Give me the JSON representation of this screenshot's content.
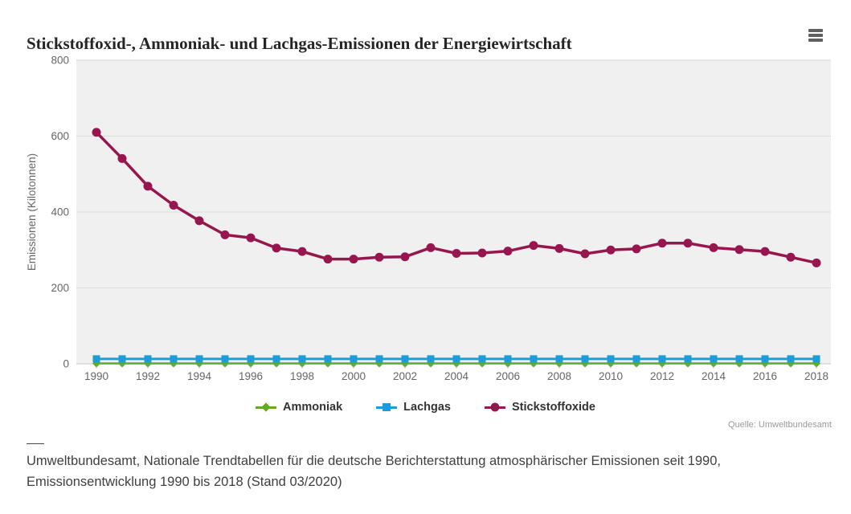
{
  "header": {
    "title": "Stickstoffoxid-, Ammoniak- und Lachgas-Emissionen der Energiewirtschaft"
  },
  "chart_data": {
    "type": "line",
    "title": "Stickstoffoxid-, Ammoniak- und Lachgas-Emissionen der Energiewirtschaft",
    "xlabel": "",
    "ylabel": "Emissionen (Kilotonnen)",
    "ylim": [
      0,
      800
    ],
    "yticks": [
      0,
      200,
      400,
      600,
      800
    ],
    "grid": true,
    "legend_position": "bottom",
    "x": [
      1990,
      1991,
      1992,
      1993,
      1994,
      1995,
      1996,
      1997,
      1998,
      1999,
      2000,
      2001,
      2002,
      2003,
      2004,
      2005,
      2006,
      2007,
      2008,
      2009,
      2010,
      2011,
      2012,
      2013,
      2014,
      2015,
      2016,
      2017,
      2018
    ],
    "xtick_labels": [
      "1990",
      "1992",
      "1994",
      "1996",
      "1998",
      "2000",
      "2002",
      "2004",
      "2006",
      "2008",
      "2010",
      "2012",
      "2014",
      "2016",
      "2018"
    ],
    "series": [
      {
        "name": "Ammoniak",
        "color": "#61a928",
        "marker": "diamond",
        "values": [
          1,
          1,
          1,
          1,
          1,
          1,
          1,
          1,
          1,
          1,
          1,
          1,
          1,
          1,
          1,
          1,
          1,
          1,
          1,
          1,
          1,
          1,
          1,
          1,
          1,
          1,
          1,
          1,
          1
        ]
      },
      {
        "name": "Lachgas",
        "color": "#1e9cd8",
        "marker": "square",
        "values": [
          13,
          13,
          13,
          13,
          13,
          13,
          13,
          13,
          13,
          13,
          13,
          13,
          13,
          13,
          13,
          13,
          13,
          13,
          13,
          13,
          13,
          13,
          13,
          13,
          13,
          13,
          13,
          13,
          13
        ]
      },
      {
        "name": "Stickstoffoxide",
        "color": "#98164e",
        "marker": "circle",
        "values": [
          610,
          541,
          468,
          418,
          377,
          340,
          332,
          305,
          296,
          276,
          276,
          281,
          282,
          306,
          291,
          292,
          297,
          312,
          304,
          290,
          300,
          303,
          318,
          318,
          306,
          301,
          296,
          281,
          266
        ]
      }
    ]
  },
  "source": {
    "label": "Quelle: Umweltbundesamt"
  },
  "footer": {
    "text": "Umweltbundesamt, Nationale Trendtabellen für die deutsche Berichterstattung atmosphärischer Emissionen seit 1990, Emissionsentwicklung 1990 bis 2018 (Stand 03/2020)"
  },
  "colors": {
    "plot_background": "#f0f0f0",
    "gridline": "#dcdcdc",
    "axis_line": "#c8c8c8",
    "tick": "#cccccc",
    "axis_text": "#666666",
    "legend_text": "#333333",
    "title_text": "#252525"
  }
}
